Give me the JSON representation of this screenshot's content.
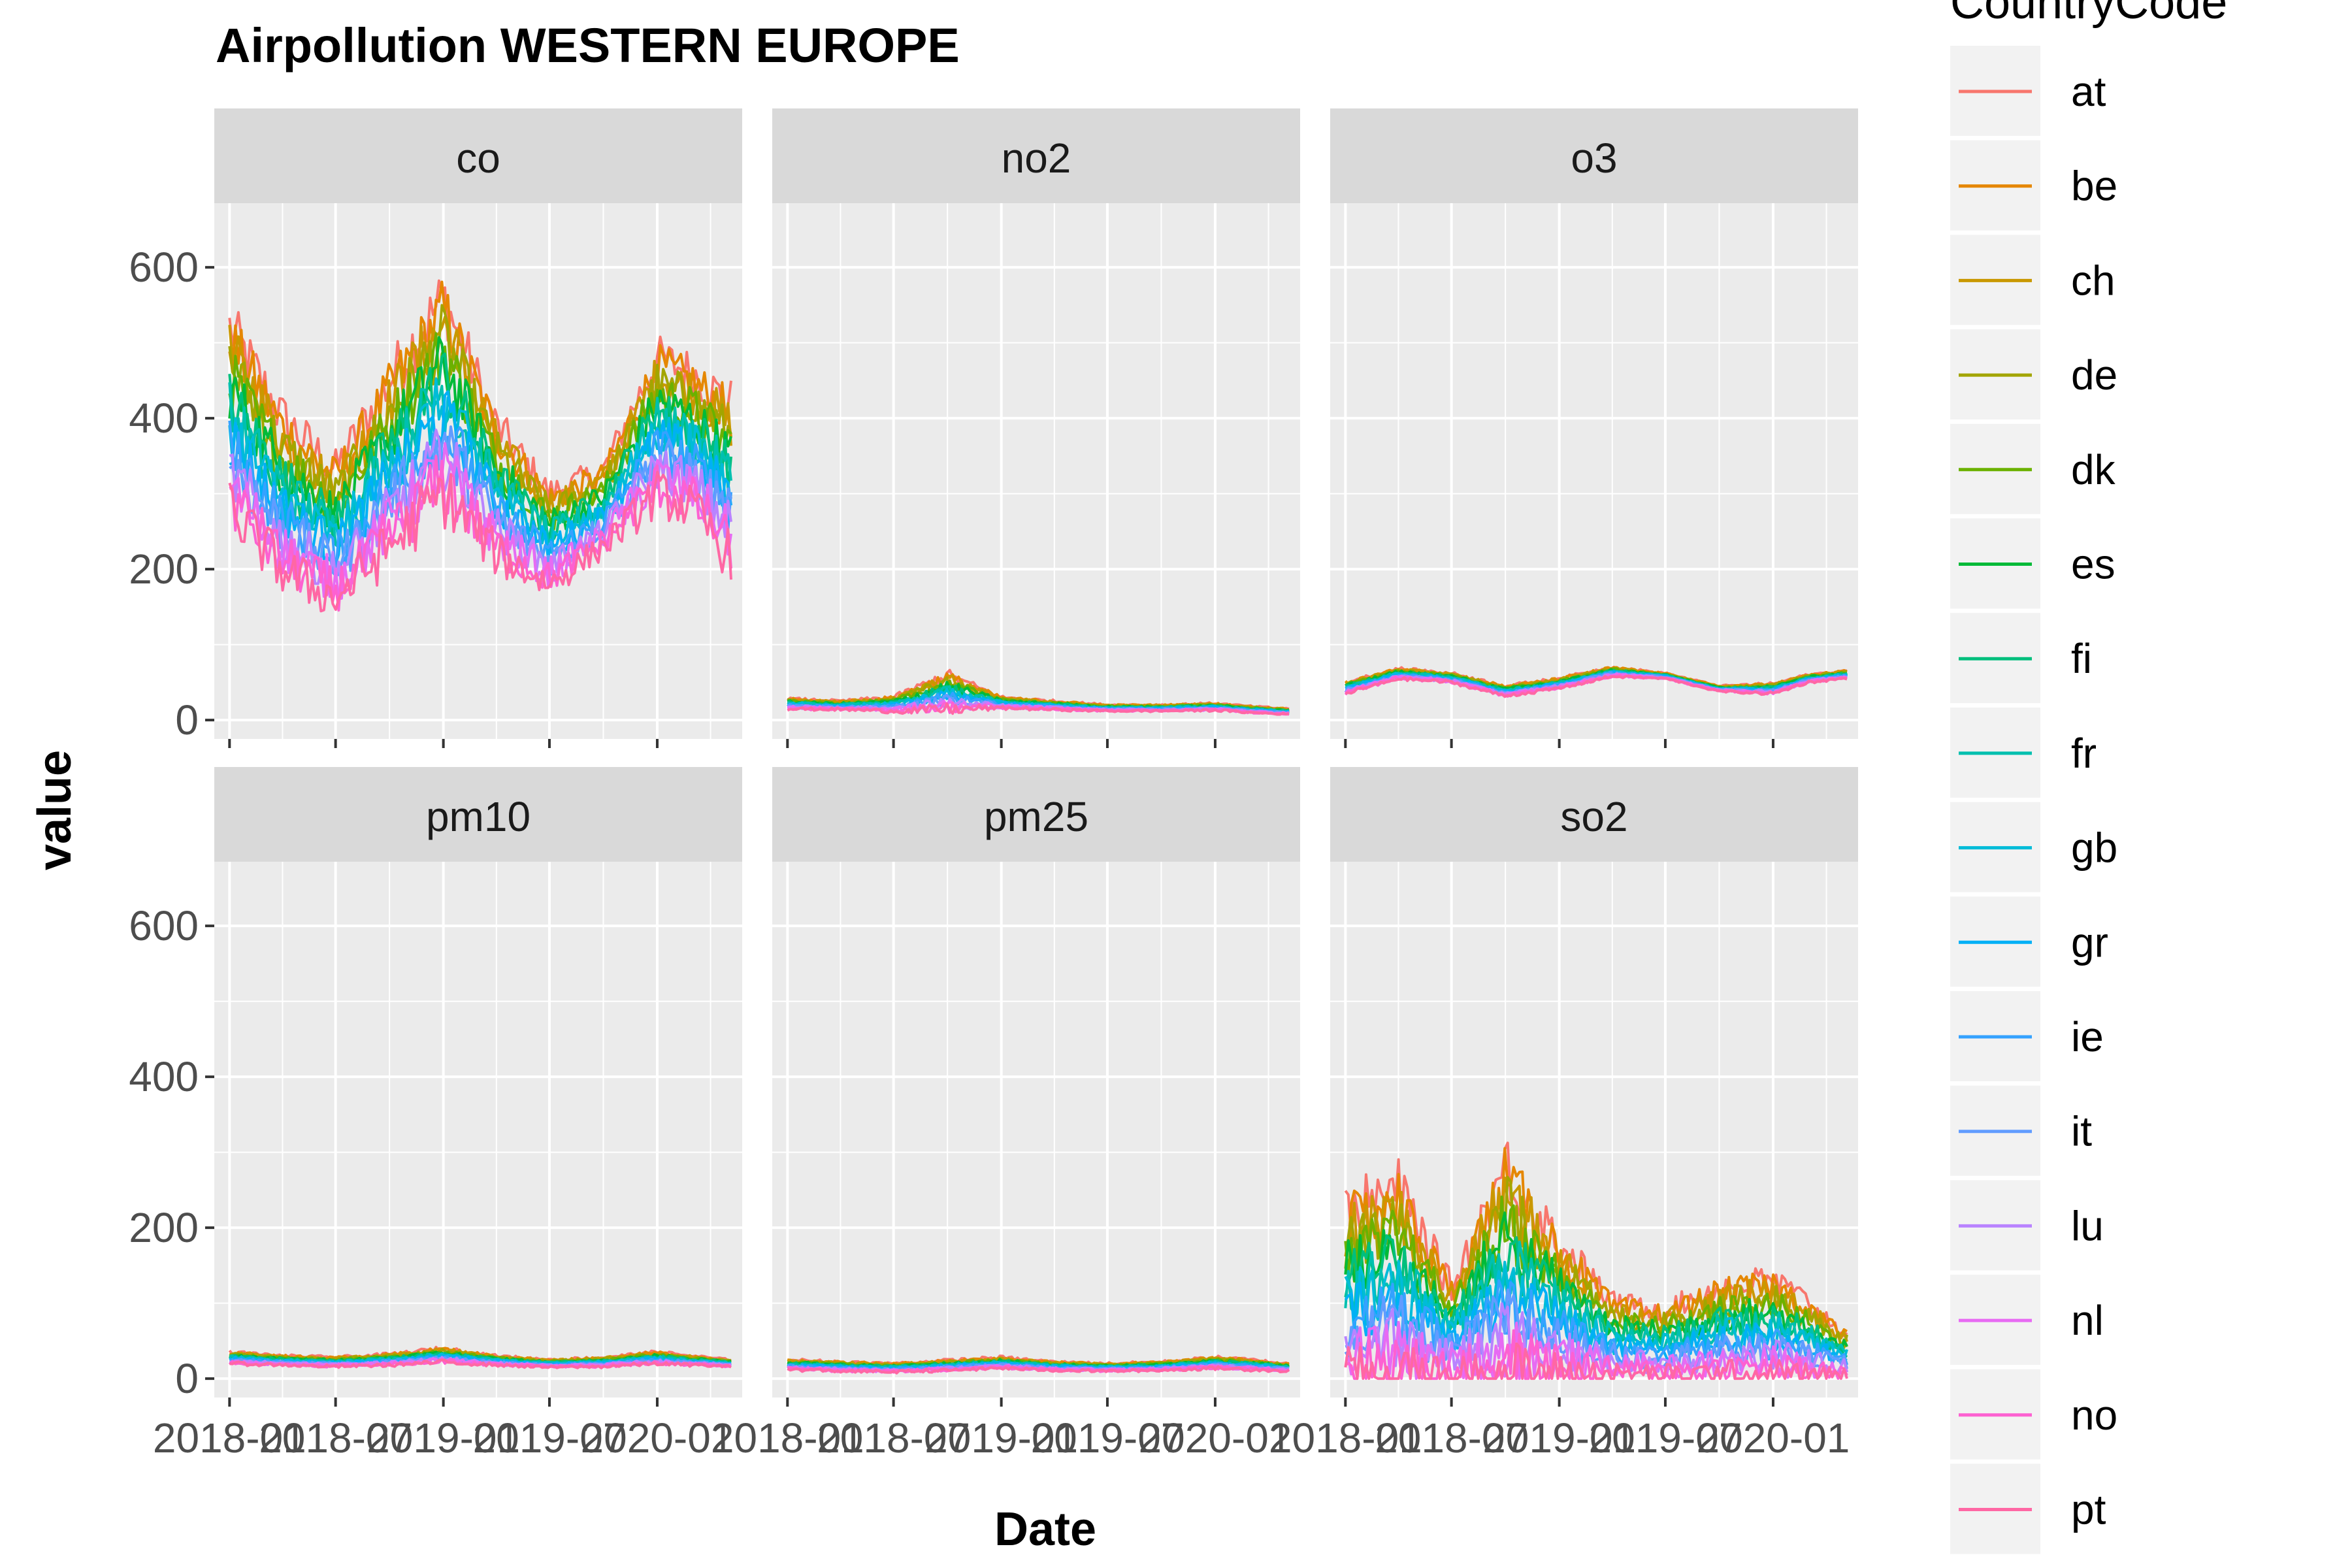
{
  "chart_data": {
    "type": "line",
    "title": "Airpollution WESTERN EUROPE",
    "xlabel": "Date",
    "ylabel": "value",
    "ylim": [
      -25,
      685
    ],
    "yticks": [
      0,
      200,
      400,
      600
    ],
    "x_range": [
      "2017-12-06",
      "2020-05-25"
    ],
    "xticks": [
      {
        "date": "2018-01-01",
        "label": "2018-01"
      },
      {
        "date": "2018-07-01",
        "label": "2018-07"
      },
      {
        "date": "2019-01-01",
        "label": "2019-01"
      },
      {
        "date": "2019-07-01",
        "label": "2019-07"
      },
      {
        "date": "2020-01-01",
        "label": "2020-01"
      }
    ],
    "panels": [
      "co",
      "no2",
      "o3",
      "pm10",
      "pm25",
      "so2"
    ],
    "legend": {
      "title": "CountryCode",
      "position": "right",
      "items": [
        {
          "name": "at",
          "color": "#F8766D"
        },
        {
          "name": "be",
          "color": "#E58700"
        },
        {
          "name": "ch",
          "color": "#C99800"
        },
        {
          "name": "de",
          "color": "#A3A500"
        },
        {
          "name": "dk",
          "color": "#6BB100"
        },
        {
          "name": "es",
          "color": "#00BA38"
        },
        {
          "name": "fi",
          "color": "#00BF7D"
        },
        {
          "name": "fr",
          "color": "#00C0AF"
        },
        {
          "name": "gb",
          "color": "#00BCD8"
        },
        {
          "name": "gr",
          "color": "#00B0F6"
        },
        {
          "name": "ie",
          "color": "#35A2FF"
        },
        {
          "name": "it",
          "color": "#619CFF"
        },
        {
          "name": "lu",
          "color": "#B983FF"
        },
        {
          "name": "nl",
          "color": "#E76BF3"
        },
        {
          "name": "no",
          "color": "#FD61D1"
        },
        {
          "name": "pt",
          "color": "#FF67A4"
        }
      ]
    },
    "series_envelope": {
      "description_dates": [
        "2018-01-01",
        "2018-04-01",
        "2018-07-01",
        "2018-10-01",
        "2019-01-01",
        "2019-04-01",
        "2019-07-01",
        "2019-10-01",
        "2020-01-01",
        "2020-03-01",
        "2020-05-01"
      ],
      "co": {
        "high": [
          520,
          400,
          330,
          450,
          560,
          390,
          300,
          330,
          480,
          460,
          420
        ],
        "low": [
          280,
          200,
          160,
          230,
          300,
          220,
          180,
          230,
          300,
          280,
          220
        ]
      },
      "no2": {
        "high": [
          28,
          25,
          30,
          60,
          30,
          25,
          20,
          20,
          22,
          18,
          15
        ],
        "low": [
          15,
          14,
          12,
          14,
          16,
          14,
          12,
          12,
          13,
          10,
          8
        ]
      },
      "o3": {
        "high": [
          50,
          68,
          62,
          45,
          55,
          70,
          62,
          45,
          48,
          60,
          65
        ],
        "low": [
          35,
          55,
          50,
          32,
          42,
          58,
          55,
          38,
          35,
          50,
          55
        ]
      },
      "pm10": {
        "high": [
          35,
          30,
          28,
          32,
          40,
          30,
          25,
          28,
          35,
          30,
          25
        ],
        "low": [
          20,
          18,
          16,
          18,
          22,
          18,
          15,
          16,
          20,
          18,
          16
        ]
      },
      "pm25": {
        "high": [
          25,
          22,
          20,
          24,
          28,
          22,
          20,
          22,
          28,
          25,
          20
        ],
        "low": [
          12,
          10,
          9,
          11,
          14,
          11,
          10,
          11,
          14,
          12,
          10
        ]
      },
      "so2": {
        "high": [
          220,
          250,
          120,
          280,
          180,
          100,
          90,
          120,
          130,
          100,
          60
        ],
        "low": [
          5,
          5,
          5,
          5,
          5,
          5,
          5,
          5,
          5,
          5,
          5
        ]
      }
    }
  }
}
